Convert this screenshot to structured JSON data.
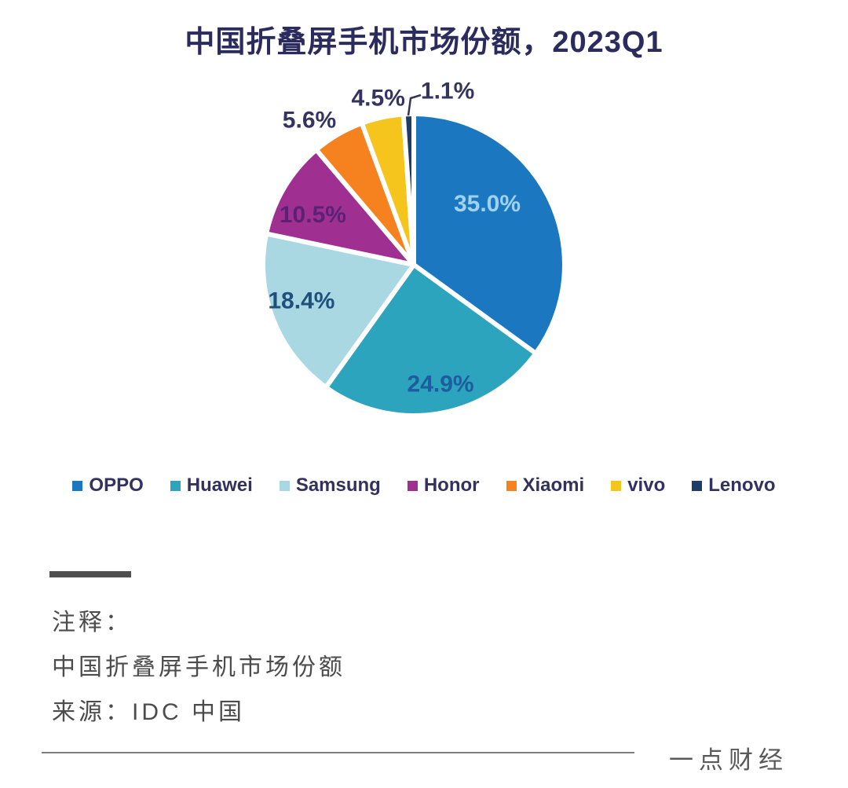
{
  "title": "中国折叠屏手机市场份额，2023Q1",
  "chart_data": {
    "type": "pie",
    "title": "中国折叠屏手机市场份额，2023Q1",
    "unit": "%",
    "start_angle_deg": 0,
    "direction": "clockwise",
    "legend_position": "bottom",
    "series": [
      {
        "name": "OPPO",
        "value": 35.0,
        "color": "#1b78c0",
        "label": "35.0%",
        "label_color": "#9fd2f0",
        "label_pos": "inside"
      },
      {
        "name": "Huawei",
        "value": 24.9,
        "color": "#2ca4bd",
        "label": "24.9%",
        "label_color": "#1d5c9e",
        "label_pos": "inside"
      },
      {
        "name": "Samsung",
        "value": 18.4,
        "color": "#a9d8e3",
        "label": "18.4%",
        "label_color": "#204f7c",
        "label_pos": "inside"
      },
      {
        "name": "Honor",
        "value": 10.5,
        "color": "#9f3092",
        "label": "10.5%",
        "label_color": "#5b2173",
        "label_pos": "inside"
      },
      {
        "name": "Xiaomi",
        "value": 5.6,
        "color": "#f5821f",
        "label": "5.6%",
        "label_color": "#35345f",
        "label_pos": "outside"
      },
      {
        "name": "vivo",
        "value": 4.5,
        "color": "#f6c51d",
        "label": "4.5%",
        "label_color": "#35345f",
        "label_pos": "outside"
      },
      {
        "name": "Lenovo",
        "value": 1.1,
        "color": "#1d3c66",
        "label": "1.1%",
        "label_color": "#35345f",
        "label_pos": "outside-callout"
      }
    ]
  },
  "notes": {
    "label": "注释：",
    "description": "中国折叠屏手机市场份额",
    "source": "来源：IDC 中国"
  },
  "footer": {
    "brand": "一点财经"
  }
}
